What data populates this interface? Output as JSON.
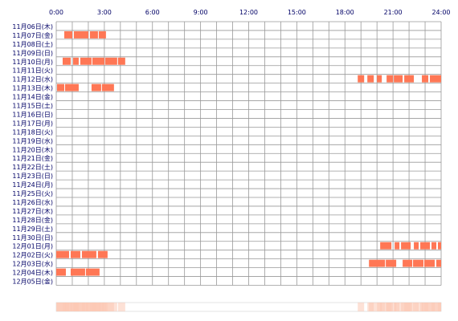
{
  "chart_data": {
    "type": "heatmap",
    "title": "",
    "xlabel": "",
    "ylabel": "",
    "x_unit": "hour",
    "x_range": [
      0,
      24
    ],
    "x_ticks": [
      "0:00",
      "3:00",
      "6:00",
      "9:00",
      "12:00",
      "15:00",
      "18:00",
      "21:00",
      "24:00"
    ],
    "grid": true,
    "colors": {
      "activity": "#ff7755",
      "grid": "#999999",
      "summary_light": "#fde6dc",
      "summary_mid": "#fbc8b4"
    },
    "days": [
      {
        "label": "11月06日(木)",
        "segments": []
      },
      {
        "label": "11月07日(金)",
        "segments": [
          [
            0.5,
            1.0
          ],
          [
            1.1,
            2.0
          ],
          [
            2.1,
            2.6
          ],
          [
            2.65,
            3.1
          ]
        ]
      },
      {
        "label": "11月08日(土)",
        "segments": []
      },
      {
        "label": "11月09日(日)",
        "segments": []
      },
      {
        "label": "11月10日(月)",
        "segments": [
          [
            0.4,
            0.9
          ],
          [
            1.05,
            1.4
          ],
          [
            1.5,
            2.2
          ],
          [
            2.25,
            3.0
          ],
          [
            3.05,
            3.8
          ],
          [
            3.85,
            4.3
          ]
        ]
      },
      {
        "label": "11月11日(火)",
        "segments": []
      },
      {
        "label": "11月12日(水)",
        "segments": [
          [
            18.8,
            19.2
          ],
          [
            19.4,
            19.8
          ],
          [
            20.0,
            20.3
          ],
          [
            20.6,
            21.0
          ],
          [
            21.05,
            21.6
          ],
          [
            21.7,
            22.3
          ],
          [
            22.8,
            23.2
          ],
          [
            23.3,
            24.0
          ]
        ]
      },
      {
        "label": "11月13日(木)",
        "segments": [
          [
            0.05,
            0.5
          ],
          [
            0.55,
            1.4
          ],
          [
            2.2,
            2.8
          ],
          [
            2.85,
            3.6
          ]
        ]
      },
      {
        "label": "11月14日(金)",
        "segments": []
      },
      {
        "label": "11月15日(土)",
        "segments": []
      },
      {
        "label": "11月16日(日)",
        "segments": []
      },
      {
        "label": "11月17日(月)",
        "segments": []
      },
      {
        "label": "11月18日(火)",
        "segments": []
      },
      {
        "label": "11月19日(水)",
        "segments": []
      },
      {
        "label": "11月20日(木)",
        "segments": []
      },
      {
        "label": "11月21日(金)",
        "segments": []
      },
      {
        "label": "11月22日(土)",
        "segments": []
      },
      {
        "label": "11月23日(日)",
        "segments": []
      },
      {
        "label": "11月24日(月)",
        "segments": []
      },
      {
        "label": "11月25日(火)",
        "segments": []
      },
      {
        "label": "11月26日(水)",
        "segments": []
      },
      {
        "label": "11月27日(木)",
        "segments": []
      },
      {
        "label": "11月28日(金)",
        "segments": []
      },
      {
        "label": "11月29日(土)",
        "segments": []
      },
      {
        "label": "11月30日(日)",
        "segments": []
      },
      {
        "label": "12月01日(月)",
        "segments": [
          [
            20.2,
            20.9
          ],
          [
            21.1,
            21.4
          ],
          [
            21.5,
            22.1
          ],
          [
            22.3,
            22.6
          ],
          [
            22.7,
            23.3
          ],
          [
            23.4,
            23.7
          ],
          [
            23.8,
            24.0
          ]
        ]
      },
      {
        "label": "12月02日(火)",
        "segments": [
          [
            0.0,
            0.8
          ],
          [
            0.9,
            1.5
          ],
          [
            1.6,
            2.5
          ],
          [
            2.6,
            3.2
          ]
        ]
      },
      {
        "label": "12月03日(水)",
        "segments": [
          [
            19.5,
            20.5
          ],
          [
            20.55,
            21.2
          ],
          [
            21.6,
            22.2
          ],
          [
            22.25,
            22.9
          ],
          [
            22.95,
            23.6
          ],
          [
            23.7,
            24.0
          ]
        ]
      },
      {
        "label": "12月04日(木)",
        "segments": [
          [
            0.0,
            0.6
          ],
          [
            0.9,
            1.8
          ],
          [
            1.85,
            2.7
          ]
        ]
      },
      {
        "label": "12月05日(金)",
        "segments": []
      }
    ]
  }
}
